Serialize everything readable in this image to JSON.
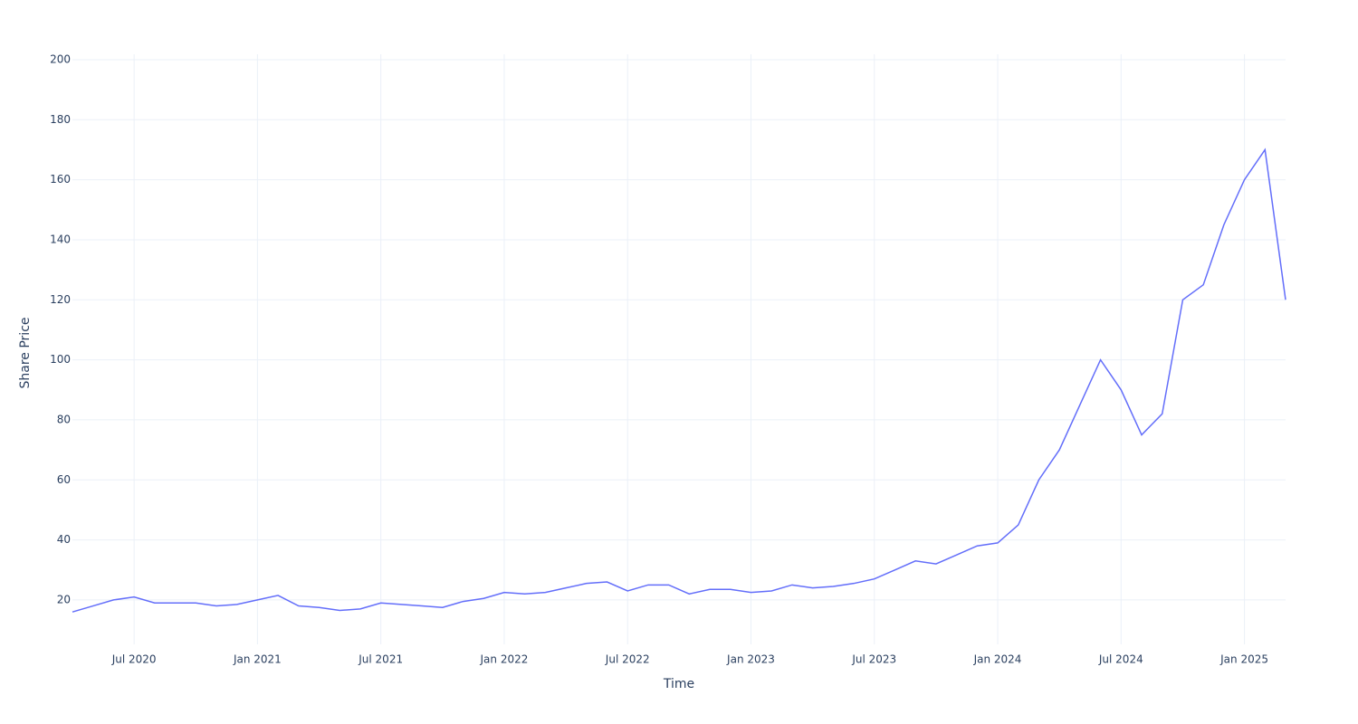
{
  "chart_data": {
    "type": "line",
    "x_label": "Time",
    "y_label": "Share Price",
    "x": [
      "2020-04",
      "2020-05",
      "2020-06",
      "2020-07",
      "2020-08",
      "2020-09",
      "2020-10",
      "2020-11",
      "2020-12",
      "2021-01",
      "2021-02",
      "2021-03",
      "2021-04",
      "2021-05",
      "2021-06",
      "2021-07",
      "2021-08",
      "2021-09",
      "2021-10",
      "2021-11",
      "2021-12",
      "2022-01",
      "2022-02",
      "2022-03",
      "2022-04",
      "2022-05",
      "2022-06",
      "2022-07",
      "2022-08",
      "2022-09",
      "2022-10",
      "2022-11",
      "2022-12",
      "2023-01",
      "2023-02",
      "2023-03",
      "2023-04",
      "2023-05",
      "2023-06",
      "2023-07",
      "2023-08",
      "2023-09",
      "2023-10",
      "2023-11",
      "2023-12",
      "2024-01",
      "2024-02",
      "2024-03",
      "2024-04",
      "2024-05",
      "2024-06",
      "2024-07",
      "2024-08",
      "2024-09",
      "2024-10",
      "2024-11",
      "2024-12",
      "2025-01",
      "2025-02",
      "2025-03"
    ],
    "series": [
      {
        "name": "Share Price",
        "color": "#636efa",
        "values": [
          16,
          18,
          20,
          21,
          19,
          19,
          19,
          18,
          18.5,
          20,
          21.5,
          18,
          17.5,
          16.5,
          17,
          19,
          18.5,
          18,
          17.5,
          19.5,
          20.5,
          22.5,
          22,
          22.5,
          24,
          25.5,
          26,
          23,
          25,
          25,
          22,
          23.5,
          23.5,
          22.5,
          23,
          25,
          24,
          24.5,
          25.5,
          27,
          30,
          33,
          32,
          35,
          38,
          39,
          45,
          60,
          70,
          85,
          100,
          90,
          75,
          82,
          120,
          125,
          145,
          160,
          170,
          120
        ]
      }
    ],
    "xlim": [
      "2020-04",
      "2025-03"
    ],
    "xticks": [
      {
        "value": "2020-07",
        "label": "Jul 2020"
      },
      {
        "value": "2021-01",
        "label": "Jan 2021"
      },
      {
        "value": "2021-07",
        "label": "Jul 2021"
      },
      {
        "value": "2022-01",
        "label": "Jan 2022"
      },
      {
        "value": "2022-07",
        "label": "Jul 2022"
      },
      {
        "value": "2023-01",
        "label": "Jan 2023"
      },
      {
        "value": "2023-07",
        "label": "Jul 2023"
      },
      {
        "value": "2024-01",
        "label": "Jan 2024"
      },
      {
        "value": "2024-07",
        "label": "Jul 2024"
      },
      {
        "value": "2025-01",
        "label": "Jan 2025"
      }
    ],
    "ylim": [
      5.2,
      201.8
    ],
    "yticks": [
      20,
      40,
      60,
      80,
      100,
      120,
      140,
      160,
      180,
      200
    ],
    "grid": true
  }
}
